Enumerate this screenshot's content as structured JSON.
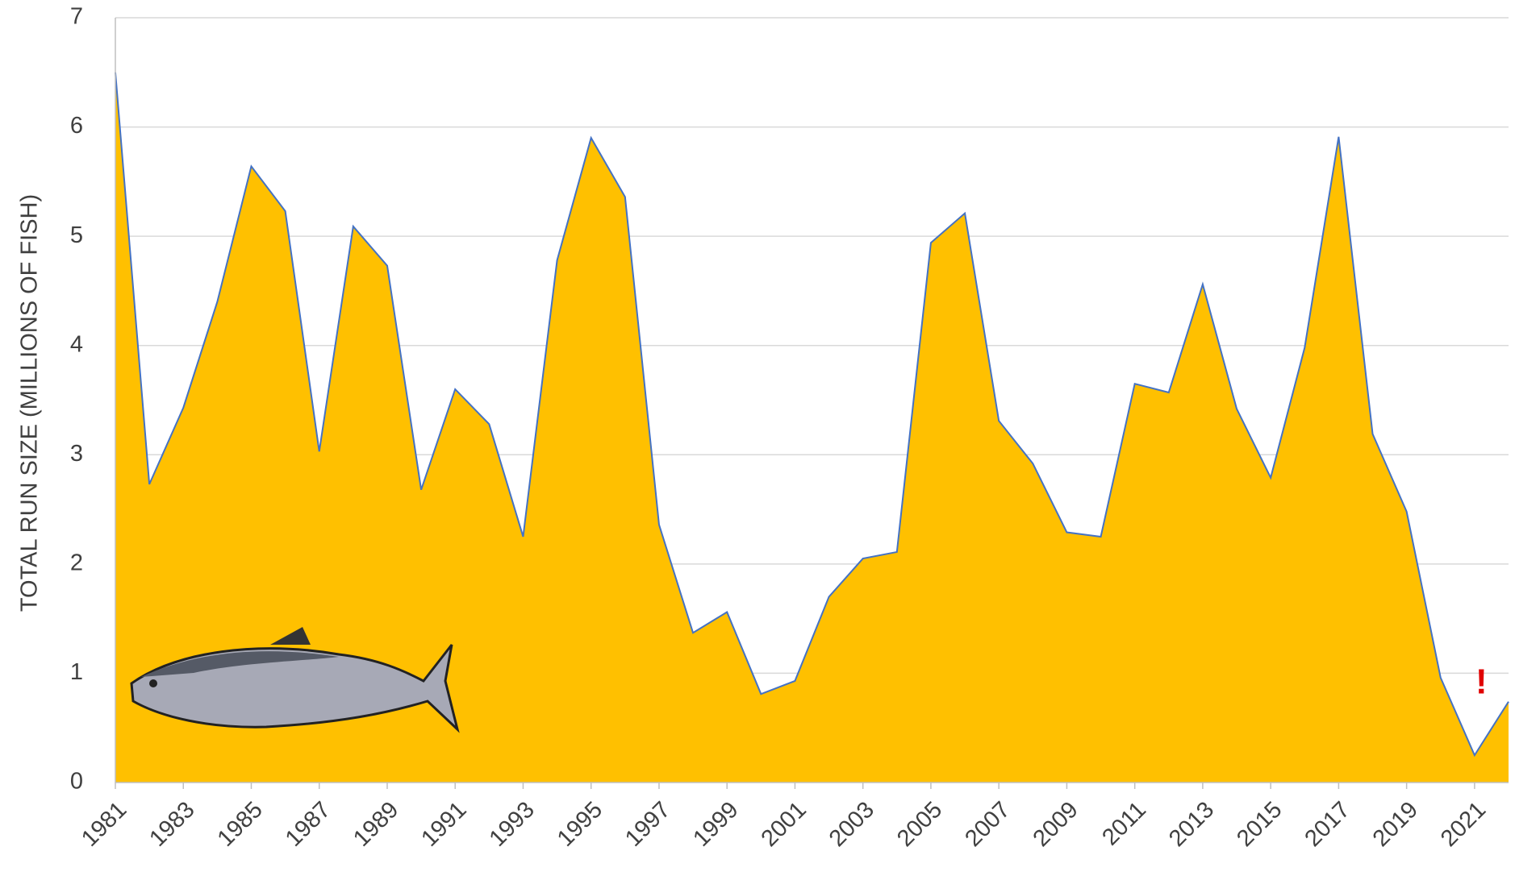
{
  "chart_data": {
    "type": "area",
    "y_label": "TOTAL RUN SIZE (MILLIONS OF FISH)",
    "annotation": "!",
    "x": [
      1981,
      1982,
      1983,
      1984,
      1985,
      1986,
      1987,
      1988,
      1989,
      1990,
      1991,
      1992,
      1993,
      1994,
      1995,
      1996,
      1997,
      1998,
      1999,
      2000,
      2001,
      2002,
      2003,
      2004,
      2005,
      2006,
      2007,
      2008,
      2009,
      2010,
      2011,
      2012,
      2013,
      2014,
      2015,
      2016,
      2017,
      2018,
      2019,
      2020,
      2021,
      2022
    ],
    "values": [
      6.5,
      2.73,
      3.43,
      4.4,
      5.64,
      5.23,
      3.03,
      5.09,
      4.73,
      2.68,
      3.6,
      3.28,
      2.25,
      4.78,
      5.9,
      5.36,
      2.36,
      1.37,
      1.56,
      0.81,
      0.93,
      1.7,
      2.05,
      2.11,
      4.94,
      5.21,
      3.31,
      2.92,
      2.29,
      2.25,
      3.65,
      3.57,
      4.56,
      3.42,
      2.79,
      3.98,
      5.91,
      3.19,
      2.48,
      0.96,
      0.25,
      0.74
    ],
    "color": "#FFC000",
    "line_color": "#4472C4",
    "xlim": [
      1981,
      2022
    ],
    "xticks": [
      1981,
      1983,
      1985,
      1987,
      1989,
      1991,
      1993,
      1995,
      1997,
      1999,
      2001,
      2003,
      2005,
      2007,
      2009,
      2011,
      2013,
      2015,
      2017,
      2019,
      2021
    ],
    "ylim": [
      0,
      7
    ],
    "yticks": [
      0,
      1,
      2,
      3,
      4,
      5,
      6,
      7
    ],
    "grid": true
  }
}
